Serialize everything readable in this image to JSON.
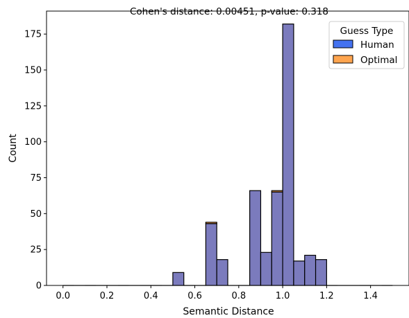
{
  "chart_data": {
    "type": "bar",
    "title": "Cohen's distance: 0.00451, p-value: 0.318",
    "xlabel": "Semantic Distance",
    "ylabel": "Count",
    "xlim": [
      -0.075,
      1.575
    ],
    "ylim": [
      0,
      191
    ],
    "x_ticks": [
      0.0,
      0.2,
      0.4,
      0.6,
      0.8,
      1.0,
      1.2,
      1.4
    ],
    "x_tick_labels": [
      "0.0",
      "0.2",
      "0.4",
      "0.6",
      "0.8",
      "1.0",
      "1.2",
      "1.4"
    ],
    "y_ticks": [
      0,
      25,
      50,
      75,
      100,
      125,
      150,
      175
    ],
    "y_tick_labels": [
      "0",
      "25",
      "50",
      "75",
      "100",
      "125",
      "150",
      "175"
    ],
    "grid": false,
    "legend": {
      "title": "Guess Type",
      "position": "top-right"
    },
    "bin_width": 0.05,
    "bin_starts": [
      0.0,
      0.05,
      0.1,
      0.15,
      0.2,
      0.25,
      0.3,
      0.35,
      0.4,
      0.45,
      0.5,
      0.55,
      0.6,
      0.65,
      0.7,
      0.75,
      0.8,
      0.85,
      0.9,
      0.95,
      1.0,
      1.05,
      1.1,
      1.15,
      1.2,
      1.25,
      1.3,
      1.35,
      1.4,
      1.45
    ],
    "series": [
      {
        "name": "Human",
        "color": "#4472f0",
        "values": [
          0,
          0,
          0,
          0,
          0,
          0,
          0,
          0,
          0,
          0,
          9,
          0,
          0,
          43,
          18,
          0,
          0,
          66,
          23,
          65,
          182,
          17,
          21,
          18,
          0,
          0,
          0,
          0,
          0,
          0
        ]
      },
      {
        "name": "Optimal",
        "color": "#ffa54f",
        "values": [
          0,
          0,
          0,
          0,
          0,
          0,
          0,
          0,
          0,
          0,
          9,
          0,
          0,
          44,
          18,
          0,
          0,
          66,
          23,
          66,
          182,
          17,
          21,
          18,
          0,
          0,
          0,
          0,
          0,
          0
        ]
      }
    ],
    "overlap_color": "#7b7bbd"
  }
}
